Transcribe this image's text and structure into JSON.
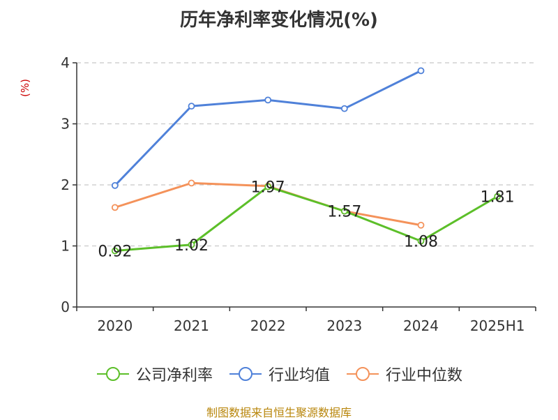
{
  "chart_data": {
    "type": "line",
    "title": "历年净利率变化情况(%)",
    "ylabel": "(%)",
    "categories": [
      "2020",
      "2021",
      "2022",
      "2023",
      "2024",
      "2025H1"
    ],
    "ylim": [
      0,
      4
    ],
    "yticks": [
      "0",
      "1",
      "2",
      "3",
      "4"
    ],
    "grid": true,
    "legend_position": "bottom",
    "series": [
      {
        "name": "公司净利率",
        "color": "#5cbf29",
        "values": [
          0.92,
          1.02,
          1.97,
          1.57,
          1.08,
          1.81
        ],
        "data_labels": [
          "0.92",
          "1.02",
          "1.97",
          "1.57",
          "1.08",
          "1.81"
        ]
      },
      {
        "name": "行业均值",
        "color": "#4f81d9",
        "values": [
          1.99,
          3.29,
          3.39,
          3.25,
          3.87,
          null
        ]
      },
      {
        "name": "行业中位数",
        "color": "#f4925a",
        "values": [
          1.63,
          2.03,
          1.98,
          1.57,
          1.34,
          null
        ]
      }
    ]
  },
  "footer": {
    "source": "制图数据来自恒生聚源数据库"
  }
}
